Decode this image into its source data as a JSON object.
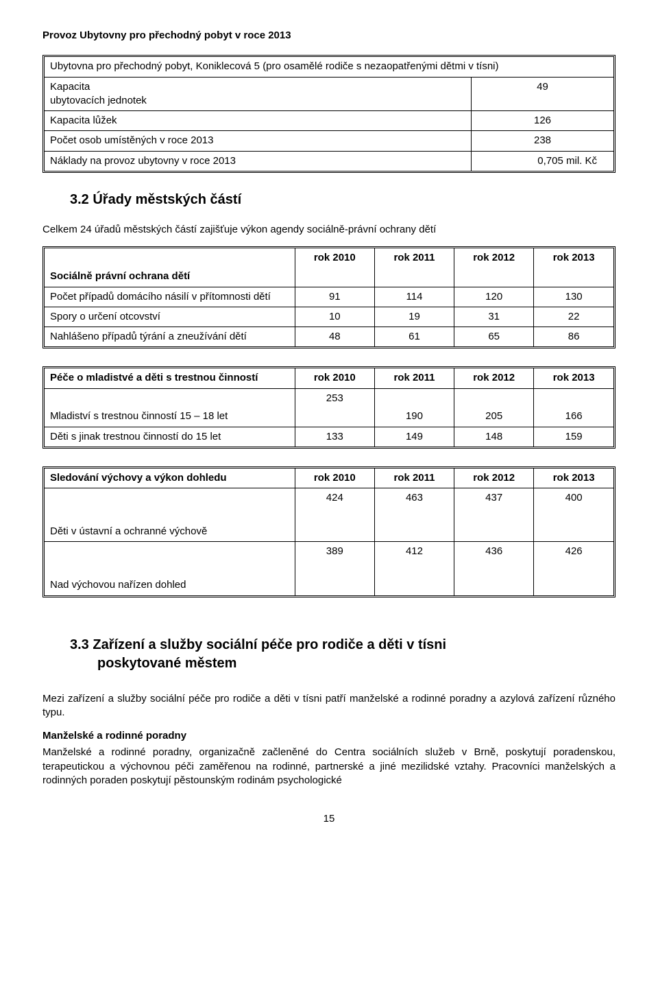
{
  "page": {
    "title": "Provoz Ubytovny pro přechodný pobyt v roce 2013",
    "number": "15"
  },
  "table1": {
    "header_row": "Ubytovna pro přechodný pobyt, Koniklecová 5 (pro osamělé rodiče s nezaopatřenými dětmi v tísni)",
    "rows": [
      {
        "label": "Kapacita\nubytovacích jednotek",
        "value": "49"
      },
      {
        "label": "Kapacita lůžek",
        "value": "126"
      },
      {
        "label": "Počet osob umístěných v roce 2013",
        "value": "238"
      },
      {
        "label": "Náklady na provoz ubytovny v roce 2013",
        "value": "0,705 mil. Kč"
      }
    ]
  },
  "section32": {
    "heading": "3.2   Úřady městských částí",
    "intro": "Celkem 24 úřadů městských částí zajišťuje výkon agendy sociálně-právní ochrany dětí"
  },
  "table2": {
    "header": [
      "Sociálně právní ochrana dětí",
      "rok 2010",
      "rok 2011",
      "rok 2012",
      "rok 2013"
    ],
    "rows": [
      [
        "Počet případů domácího násilí v přítomnosti dětí",
        "91",
        "114",
        "120",
        "130"
      ],
      [
        "Spory o určení otcovství",
        "10",
        "19",
        "31",
        "22"
      ],
      [
        "Nahlášeno případů týrání a zneužívání dětí",
        "48",
        "61",
        "65",
        "86"
      ]
    ]
  },
  "table3": {
    "header": [
      "Péče o mladistvé a děti s trestnou činností",
      "rok  2010",
      "rok  2011",
      "rok  2012",
      "rok 2013"
    ],
    "rows": [
      [
        "Mladiství s trestnou činností 15 – 18 let",
        "253",
        "190",
        "205",
        "166"
      ],
      [
        "Děti s jinak trestnou činností do 15 let",
        "133",
        "149",
        "148",
        "159"
      ]
    ]
  },
  "table4": {
    "header": [
      "Sledování  výchovy a výkon dohledu",
      "rok 2010",
      "rok 2011",
      "rok 2012",
      "rok 2013"
    ],
    "rows": [
      [
        "Děti v ústavní a ochranné výchově",
        "424",
        "463",
        "437",
        "400"
      ],
      [
        "Nad výchovou nařízen dohled",
        "389",
        "412",
        "436",
        "426"
      ]
    ]
  },
  "section33": {
    "heading_line1": "3.3   Zařízení a služby sociální péče pro rodiče a děti v tísni",
    "heading_line2": "poskytované městem",
    "para1": "Mezi zařízení a služby sociální péče pro rodiče a děti v tísni patří manželské a rodinné poradny a azylová zařízení různého typu.",
    "subhead": "Manželské a rodinné poradny",
    "para2": "Manželské a rodinné poradny, organizačně začleněné do Centra sociálních služeb v Brně, poskytují poradenskou, terapeutickou a výchovnou péči zaměřenou na rodinné, partnerské a jiné mezilidské vztahy. Pracovníci manželských a rodinných poraden poskytují pěstounským rodinám psychologické"
  }
}
